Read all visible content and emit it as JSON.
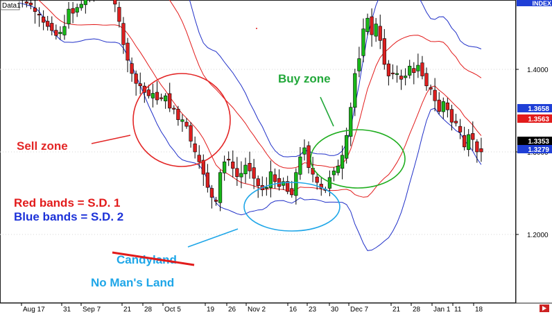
{
  "chart_data": {
    "type": "candlestick",
    "title": "Data1",
    "panel_label": "INDEX",
    "x_tick_labels": [
      "Aug 17",
      "31",
      "Sep 7",
      "21",
      "28",
      "Oct 5",
      "19",
      "26",
      "Nov 2",
      "16",
      "23",
      "30",
      "Dec 7",
      "21",
      "28",
      "Jan 1",
      "11",
      "18"
    ],
    "y_tick_labels": [
      "1.4000",
      "1.3000",
      "1.2000"
    ],
    "ylim": [
      1.18,
      1.52
    ],
    "y_ticks": [
      1.4,
      1.3,
      1.2
    ],
    "price_tags": [
      {
        "value": "1.3658",
        "color": "#1f3fd6"
      },
      {
        "value": "1.3563",
        "color": "#e21b1b"
      },
      {
        "value": "1.3353",
        "color": "#000000"
      },
      {
        "value": "1.3279",
        "color": "#1f3fd6"
      }
    ],
    "close_prices": [
      1.505,
      1.5,
      1.493,
      1.49,
      1.484,
      1.48,
      1.478,
      1.47,
      1.466,
      1.457,
      1.452,
      1.447,
      1.441,
      1.445,
      1.452,
      1.473,
      1.468,
      1.475,
      1.479,
      1.486,
      1.5,
      1.495,
      1.5,
      1.508,
      1.508,
      1.497,
      1.479,
      1.458,
      1.43,
      1.411,
      1.395,
      1.383,
      1.38,
      1.372,
      1.368,
      1.371,
      1.363,
      1.365,
      1.368,
      1.353,
      1.352,
      1.339,
      1.339,
      1.331,
      1.313,
      1.3,
      1.288,
      1.273,
      1.257,
      1.245,
      1.24,
      1.275,
      1.288,
      1.291,
      1.28,
      1.27,
      1.274,
      1.284,
      1.277,
      1.268,
      1.259,
      1.254,
      1.257,
      1.276,
      1.264,
      1.258,
      1.264,
      1.252,
      1.248,
      1.275,
      1.294,
      1.305,
      1.281,
      1.273,
      1.263,
      1.256,
      1.254,
      1.269,
      1.277,
      1.283,
      1.296,
      1.32,
      1.354,
      1.395,
      1.413,
      1.449,
      1.462,
      1.442,
      1.455,
      1.435,
      1.406,
      1.392,
      1.395,
      1.395,
      1.388,
      1.392,
      1.404,
      1.396,
      1.405,
      1.392,
      1.38,
      1.376,
      1.362,
      1.349,
      1.361,
      1.351,
      1.336,
      1.335,
      1.324,
      1.306,
      1.321,
      1.315,
      1.3,
      1.3
    ]
  },
  "annotations": {
    "sell_zone": "Sell zone",
    "buy_zone": "Buy zone",
    "red_bands": "Red bands = S.D. 1",
    "blue_bands": "Blue bands = S.D. 2",
    "candyland": "Candyland",
    "no_mans_land": "No Man's Land"
  },
  "colors": {
    "bull": "#18b818",
    "bear": "#dd1f1f",
    "band_sd1": "#e21b1b",
    "band_sd2": "#1f2fc8",
    "sell_zone": "#e32626",
    "buy_zone": "#22a83a",
    "buy_circle": "#1fae1f",
    "candyland": "#1ea6e8",
    "blue_text": "#1d32d8",
    "frame": "#1c1c1c",
    "tag_black_text": "#ffffff"
  }
}
